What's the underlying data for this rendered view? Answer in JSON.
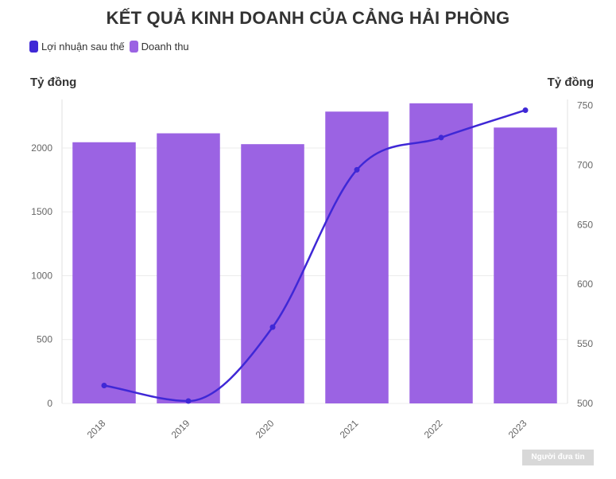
{
  "chart_data": {
    "type": "bar+line",
    "title": "KẾT QUẢ KINH DOANH CỦA CẢNG HẢI PHÒNG",
    "categories": [
      "2018",
      "2019",
      "2020",
      "2021",
      "2022",
      "2023"
    ],
    "series": [
      {
        "name": "Doanh thu",
        "type": "bar",
        "axis": "left",
        "color": "#9b63e3",
        "values": [
          2045,
          2115,
          2030,
          2285,
          2350,
          2160
        ]
      },
      {
        "name": "Lợi nhuận sau thế",
        "type": "line",
        "axis": "right",
        "color": "#3f28d6",
        "values": [
          515,
          502,
          564,
          696,
          723,
          746
        ]
      }
    ],
    "y_left": {
      "label": "Tỷ đồng",
      "ticks": [
        0,
        500,
        1000,
        1500,
        2000
      ],
      "range": [
        0,
        2380
      ]
    },
    "y_right": {
      "label": "Tỷ đồng",
      "ticks": [
        500,
        550,
        600,
        650,
        700,
        750
      ],
      "range": [
        500,
        755
      ]
    },
    "legend_position": "top-left",
    "grid": true
  },
  "legend": [
    {
      "label": "Lợi nhuận sau thế",
      "color": "#3f28d6"
    },
    {
      "label": "Doanh thu",
      "color": "#9b63e3"
    }
  ],
  "watermark": "Người đưa tin"
}
